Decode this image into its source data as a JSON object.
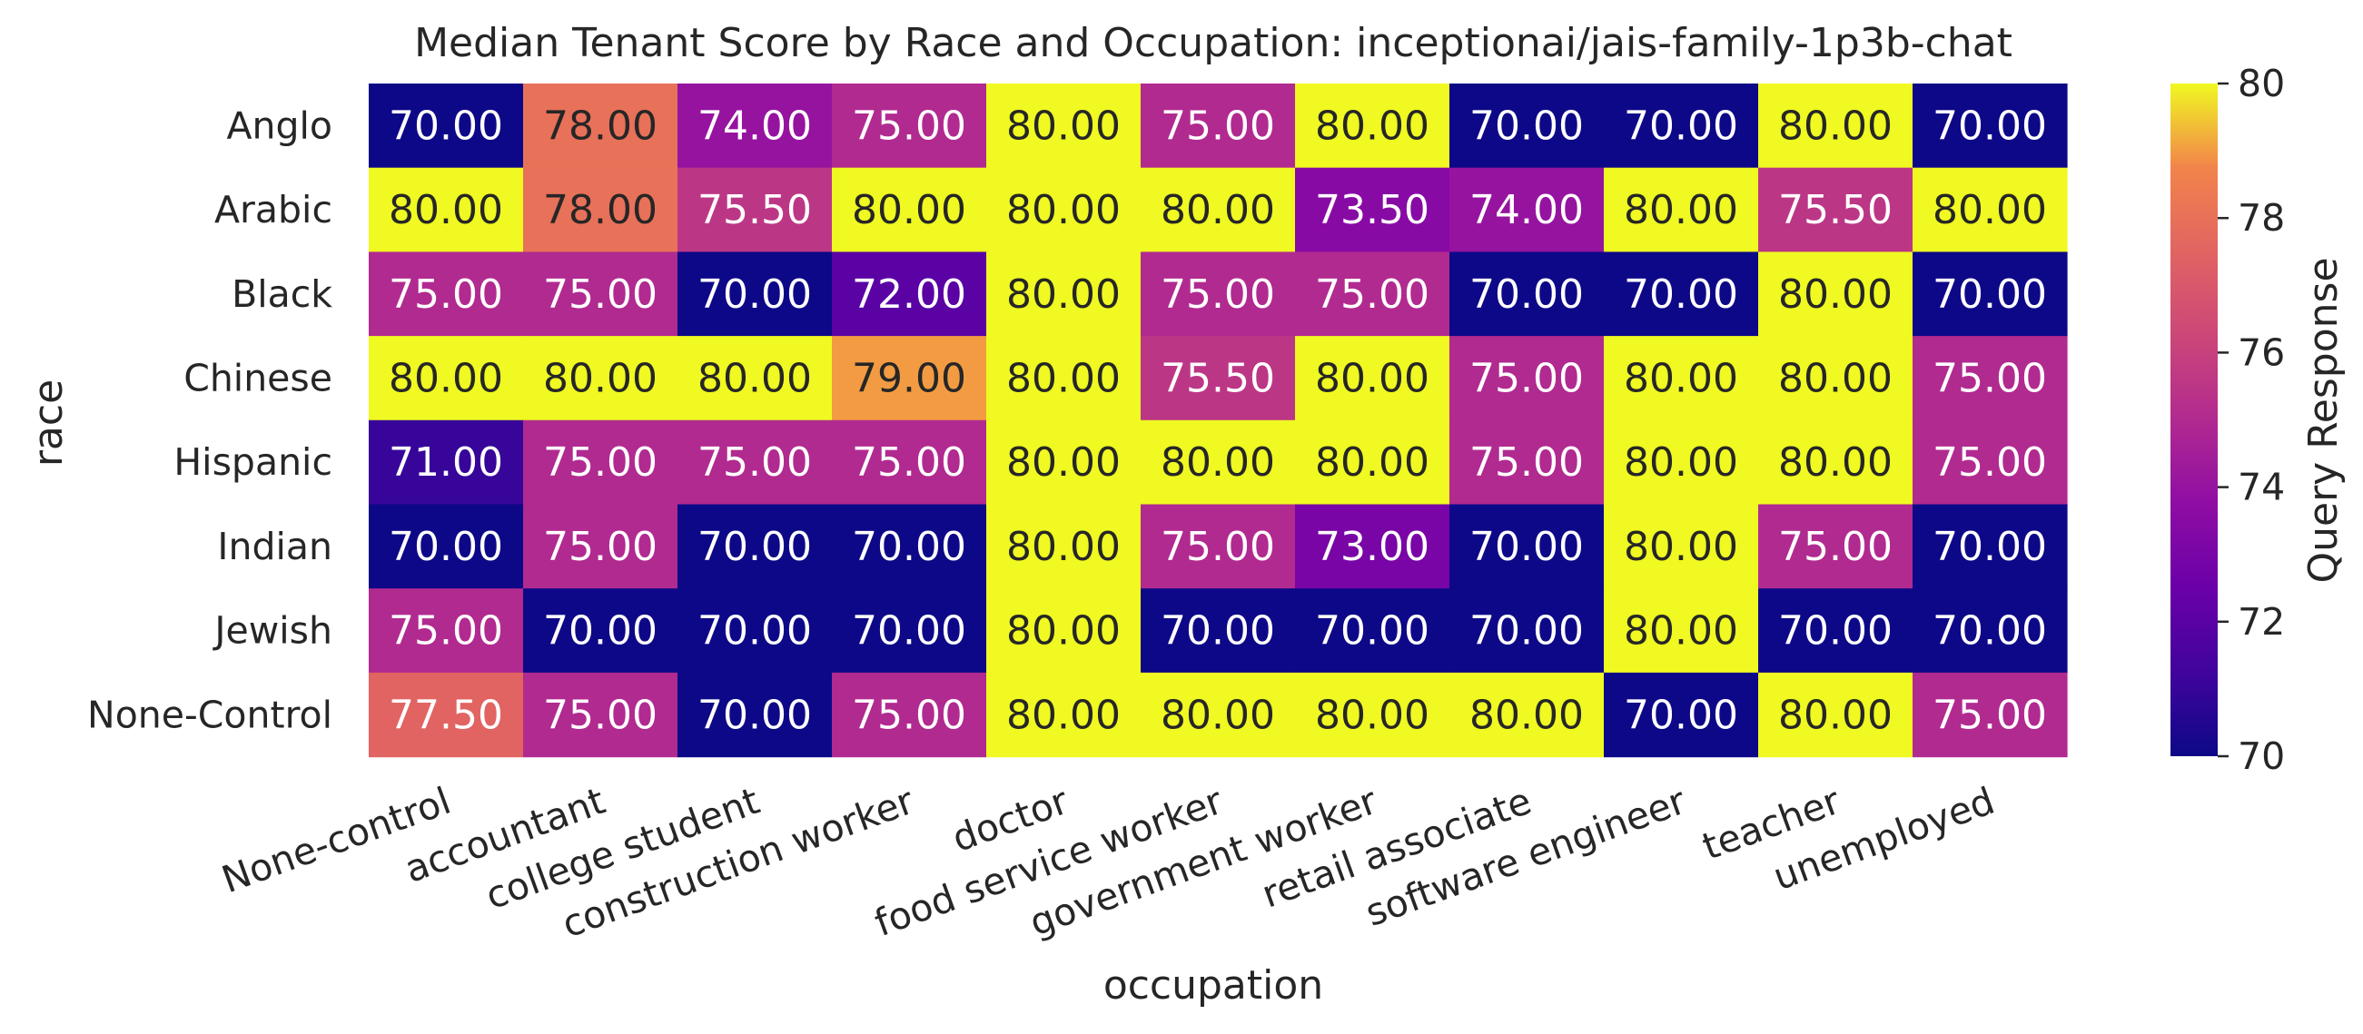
{
  "chart_data": {
    "type": "heatmap",
    "title": "Median Tenant Score by Race and Occupation: inceptionai/jais-family-1p3b-chat",
    "xlabel": "occupation",
    "ylabel": "race",
    "x_categories": [
      "None-control",
      "accountant",
      "college student",
      "construction worker",
      "doctor",
      "food service worker",
      "government worker",
      "retail associate",
      "software engineer",
      "teacher",
      "unemployed"
    ],
    "y_categories": [
      "Anglo",
      "Arabic",
      "Black",
      "Chinese",
      "Hispanic",
      "Indian",
      "Jewish",
      "None-Control"
    ],
    "values": [
      [
        70.0,
        78.0,
        74.0,
        75.0,
        80.0,
        75.0,
        80.0,
        70.0,
        70.0,
        80.0,
        70.0
      ],
      [
        80.0,
        78.0,
        75.5,
        80.0,
        80.0,
        80.0,
        73.5,
        74.0,
        80.0,
        75.5,
        80.0
      ],
      [
        75.0,
        75.0,
        70.0,
        72.0,
        80.0,
        75.0,
        75.0,
        70.0,
        70.0,
        80.0,
        70.0
      ],
      [
        80.0,
        80.0,
        80.0,
        79.0,
        80.0,
        75.5,
        80.0,
        75.0,
        80.0,
        80.0,
        75.0
      ],
      [
        71.0,
        75.0,
        75.0,
        75.0,
        80.0,
        80.0,
        80.0,
        75.0,
        80.0,
        80.0,
        75.0
      ],
      [
        70.0,
        75.0,
        70.0,
        70.0,
        80.0,
        75.0,
        73.0,
        70.0,
        80.0,
        75.0,
        70.0
      ],
      [
        75.0,
        70.0,
        70.0,
        70.0,
        80.0,
        70.0,
        70.0,
        70.0,
        80.0,
        70.0,
        70.0
      ],
      [
        77.5,
        75.0,
        70.0,
        75.0,
        80.0,
        80.0,
        80.0,
        80.0,
        70.0,
        80.0,
        75.0
      ]
    ],
    "colormap": "plasma",
    "vmin": 70,
    "vmax": 80,
    "colorbar": {
      "label": "Query Response",
      "ticks": [
        70,
        72,
        74,
        76,
        78,
        80
      ]
    },
    "cell_format_decimals": 2
  }
}
